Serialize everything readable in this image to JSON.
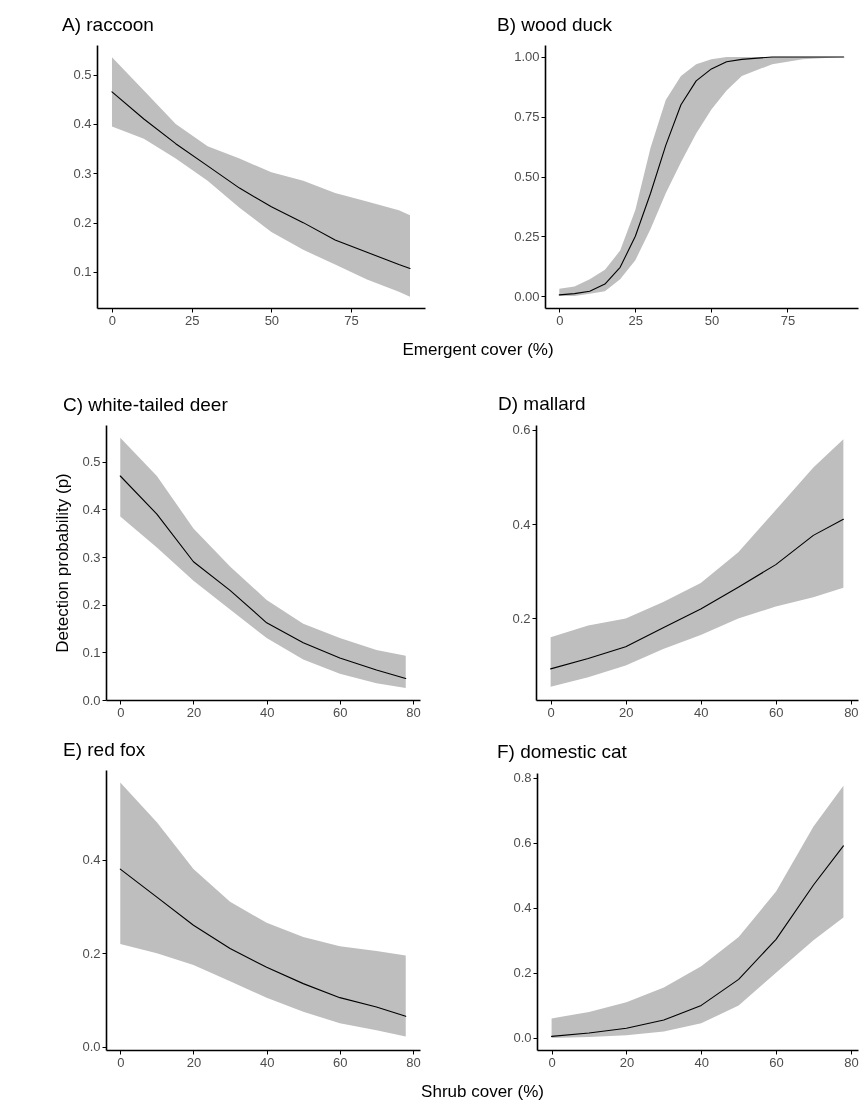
{
  "chart_data": [
    {
      "type": "line",
      "title": "A) raccoon",
      "xlabel": "Emergent cover (%)",
      "xlim": [
        -4.7,
        98.2
      ],
      "ylim": [
        0.027,
        0.56
      ],
      "xticks": [
        0,
        25,
        50,
        75
      ],
      "yticks": [
        0.1,
        0.2,
        0.3,
        0.4,
        0.5
      ],
      "x": [
        0,
        10,
        20,
        30,
        40,
        50,
        60,
        70,
        80,
        90,
        93.5
      ],
      "series": [
        {
          "color": "#000000",
          "values": [
            0.465,
            0.41,
            0.36,
            0.315,
            0.27,
            0.232,
            0.2,
            0.165,
            0.14,
            0.115,
            0.107
          ],
          "lower": [
            0.395,
            0.37,
            0.33,
            0.285,
            0.23,
            0.181,
            0.145,
            0.115,
            0.085,
            0.06,
            0.05
          ],
          "upper": [
            0.535,
            0.468,
            0.4,
            0.355,
            0.33,
            0.302,
            0.285,
            0.26,
            0.243,
            0.225,
            0.215
          ]
        }
      ]
    },
    {
      "type": "line",
      "title": "B) wood duck",
      "xlim": [
        -4.7,
        98.2
      ],
      "ylim": [
        -0.05,
        1.05
      ],
      "xticks": [
        0,
        25,
        50,
        75
      ],
      "yticks": [
        {
          "value": 0,
          "label": "0.00"
        },
        0.25,
        {
          "value": 0.5,
          "label": "0.50"
        },
        0.75,
        {
          "value": 1,
          "label": "1.00"
        }
      ],
      "x": [
        0,
        5,
        10,
        15,
        20,
        25,
        30,
        35,
        40,
        45,
        50,
        55,
        60,
        70,
        80,
        93.5
      ],
      "series": [
        {
          "color": "#000000",
          "values": [
            0.005,
            0.01,
            0.02,
            0.05,
            0.12,
            0.25,
            0.43,
            0.63,
            0.8,
            0.9,
            0.95,
            0.98,
            0.99,
            1.0,
            1.0,
            1.0
          ],
          "lower": [
            0.0,
            0.0,
            0.01,
            0.02,
            0.07,
            0.15,
            0.28,
            0.43,
            0.56,
            0.68,
            0.78,
            0.86,
            0.92,
            0.97,
            0.99,
            1.0
          ],
          "upper": [
            0.03,
            0.04,
            0.07,
            0.11,
            0.19,
            0.36,
            0.62,
            0.82,
            0.92,
            0.97,
            0.99,
            1.0,
            1.0,
            1.0,
            1.0,
            1.0
          ]
        }
      ]
    },
    {
      "type": "line",
      "title": "C) white-tailed deer",
      "ylabel": "Detection probability (p)",
      "xlim": [
        -3.9,
        81.9
      ],
      "ylim": [
        0,
        0.577
      ],
      "xticks": [
        0,
        20,
        40,
        60,
        80
      ],
      "yticks": [
        {
          "value": 0,
          "label": "0.0"
        },
        0.1,
        0.2,
        0.3,
        0.4,
        0.5
      ],
      "x": [
        0,
        10,
        20,
        30,
        40,
        50,
        60,
        70,
        78
      ],
      "series": [
        {
          "color": "#000000",
          "values": [
            0.47,
            0.39,
            0.29,
            0.23,
            0.162,
            0.12,
            0.088,
            0.063,
            0.045
          ],
          "lower": [
            0.385,
            0.32,
            0.25,
            0.19,
            0.13,
            0.085,
            0.055,
            0.035,
            0.025
          ],
          "upper": [
            0.55,
            0.47,
            0.36,
            0.28,
            0.21,
            0.16,
            0.13,
            0.105,
            0.093
          ]
        }
      ]
    },
    {
      "type": "line",
      "title": "D) mallard",
      "xlim": [
        -3.9,
        81.9
      ],
      "ylim": [
        0.027,
        0.61
      ],
      "xticks": [
        0,
        20,
        40,
        60,
        80
      ],
      "yticks": [
        0.2,
        0.4,
        0.6
      ],
      "x": [
        0,
        10,
        20,
        30,
        40,
        50,
        60,
        70,
        78
      ],
      "series": [
        {
          "color": "#000000",
          "values": [
            0.093,
            0.115,
            0.14,
            0.18,
            0.22,
            0.266,
            0.314,
            0.376,
            0.41
          ],
          "lower": [
            0.055,
            0.075,
            0.1,
            0.135,
            0.165,
            0.2,
            0.225,
            0.245,
            0.265
          ],
          "upper": [
            0.16,
            0.185,
            0.2,
            0.235,
            0.275,
            0.34,
            0.43,
            0.52,
            0.58
          ]
        }
      ]
    },
    {
      "type": "line",
      "title": "E) red fox",
      "xlabel": "Shrub cover (%)",
      "xlim": [
        -3.9,
        81.9
      ],
      "ylim": [
        -0.007,
        0.592
      ],
      "xticks": [
        0,
        20,
        40,
        60,
        80
      ],
      "yticks": [
        {
          "value": 0,
          "label": "0.0"
        },
        0.2,
        0.4
      ],
      "x": [
        0,
        10,
        20,
        30,
        40,
        50,
        60,
        70,
        78
      ],
      "series": [
        {
          "color": "#000000",
          "values": [
            0.38,
            0.32,
            0.26,
            0.21,
            0.17,
            0.135,
            0.105,
            0.085,
            0.065
          ],
          "lower": [
            0.22,
            0.2,
            0.175,
            0.14,
            0.105,
            0.075,
            0.05,
            0.035,
            0.022
          ],
          "upper": [
            0.565,
            0.48,
            0.38,
            0.31,
            0.265,
            0.235,
            0.215,
            0.205,
            0.195
          ]
        }
      ]
    },
    {
      "type": "line",
      "title": "F) domestic cat",
      "xlim": [
        -3.9,
        81.9
      ],
      "ylim": [
        -0.037,
        0.814
      ],
      "xticks": [
        0,
        20,
        40,
        60,
        80
      ],
      "yticks": [
        {
          "value": 0,
          "label": "0.0"
        },
        0.2,
        0.4,
        0.6,
        0.8
      ],
      "x": [
        0,
        10,
        20,
        30,
        40,
        50,
        60,
        70,
        78
      ],
      "series": [
        {
          "color": "#000000",
          "values": [
            0.005,
            0.015,
            0.03,
            0.055,
            0.1,
            0.18,
            0.303,
            0.47,
            0.59
          ],
          "lower": [
            0.0,
            0.003,
            0.008,
            0.02,
            0.045,
            0.1,
            0.2,
            0.3,
            0.37
          ],
          "upper": [
            0.06,
            0.08,
            0.11,
            0.155,
            0.22,
            0.31,
            0.45,
            0.65,
            0.775
          ]
        }
      ]
    }
  ]
}
